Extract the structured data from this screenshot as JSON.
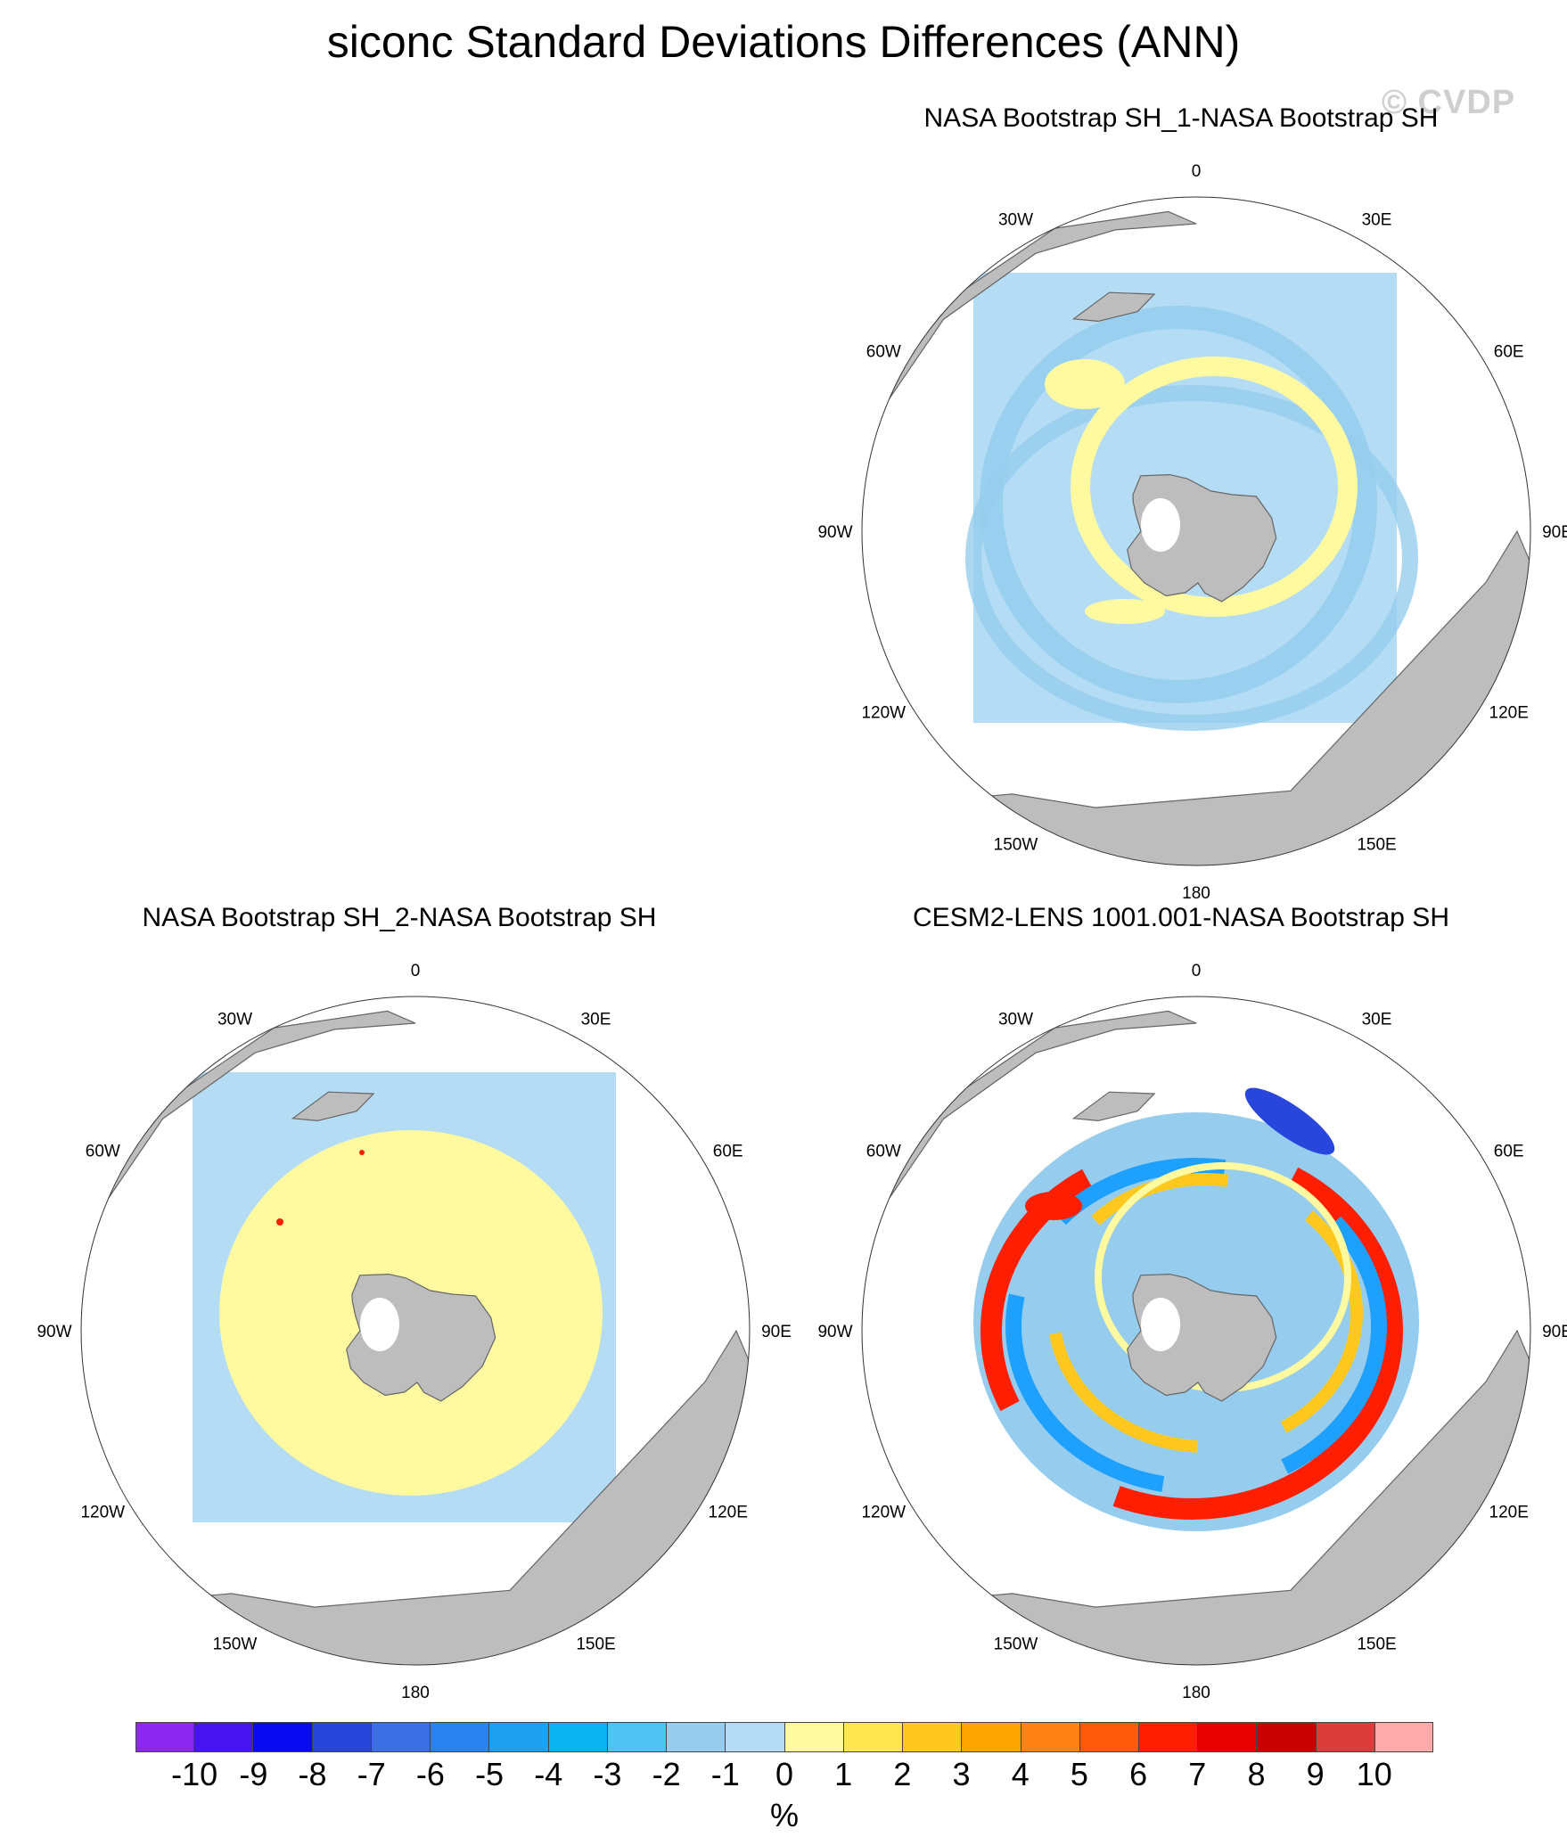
{
  "title": "siconc Standard Deviations Differences (ANN)",
  "watermark": "© CVDP",
  "panels": [
    {
      "id": "p1",
      "title": "NASA Bootstrap SH_1-NASA Bootstrap SH",
      "pattern": "small-diff",
      "colors": [
        "#b4dcf4",
        "#96cdee",
        "#fffaa0"
      ]
    },
    {
      "id": "p2",
      "title": "NASA Bootstrap SH_2-NASA Bootstrap SH",
      "pattern": "positive-small",
      "colors": [
        "#b4dcf4",
        "#fffaa0",
        "#ff1e00"
      ]
    },
    {
      "id": "p3",
      "title": "CESM2-LENS 1001.001-NASA Bootstrap SH",
      "pattern": "rings",
      "colors": [
        "#ff1e00",
        "#ffc81e",
        "#1ea0ff",
        "#2846dc",
        "#fffaa0",
        "#96cdee"
      ]
    }
  ],
  "map_labels": {
    "lon_0": "0",
    "lon_30e": "30E",
    "lon_60e": "60E",
    "lon_90e": "90E",
    "lon_120e": "120E",
    "lon_150e": "150E",
    "lon_180": "180",
    "lon_150w": "150W",
    "lon_120w": "120W",
    "lon_90w": "90W",
    "lon_60w": "60W",
    "lon_30w": "30W"
  },
  "colorbar": {
    "colors": [
      "#8c28f0",
      "#4614f0",
      "#0a0af0",
      "#2846dc",
      "#3c6ee6",
      "#2882f0",
      "#1ea0f0",
      "#0ab4f0",
      "#50c3f5",
      "#96cdee",
      "#b4dcf4",
      "#fffaa0",
      "#ffe650",
      "#ffc81e",
      "#ffa500",
      "#ff8214",
      "#ff5a0a",
      "#ff1e00",
      "#e60000",
      "#c80000",
      "#dc3c3c",
      "#ffaaaa"
    ],
    "ticks": [
      "-10",
      "-9",
      "-8",
      "-7",
      "-6",
      "-5",
      "-4",
      "-3",
      "-2",
      "-1",
      "0",
      "1",
      "2",
      "3",
      "4",
      "5",
      "6",
      "7",
      "8",
      "9",
      "10"
    ],
    "unit": "%"
  }
}
